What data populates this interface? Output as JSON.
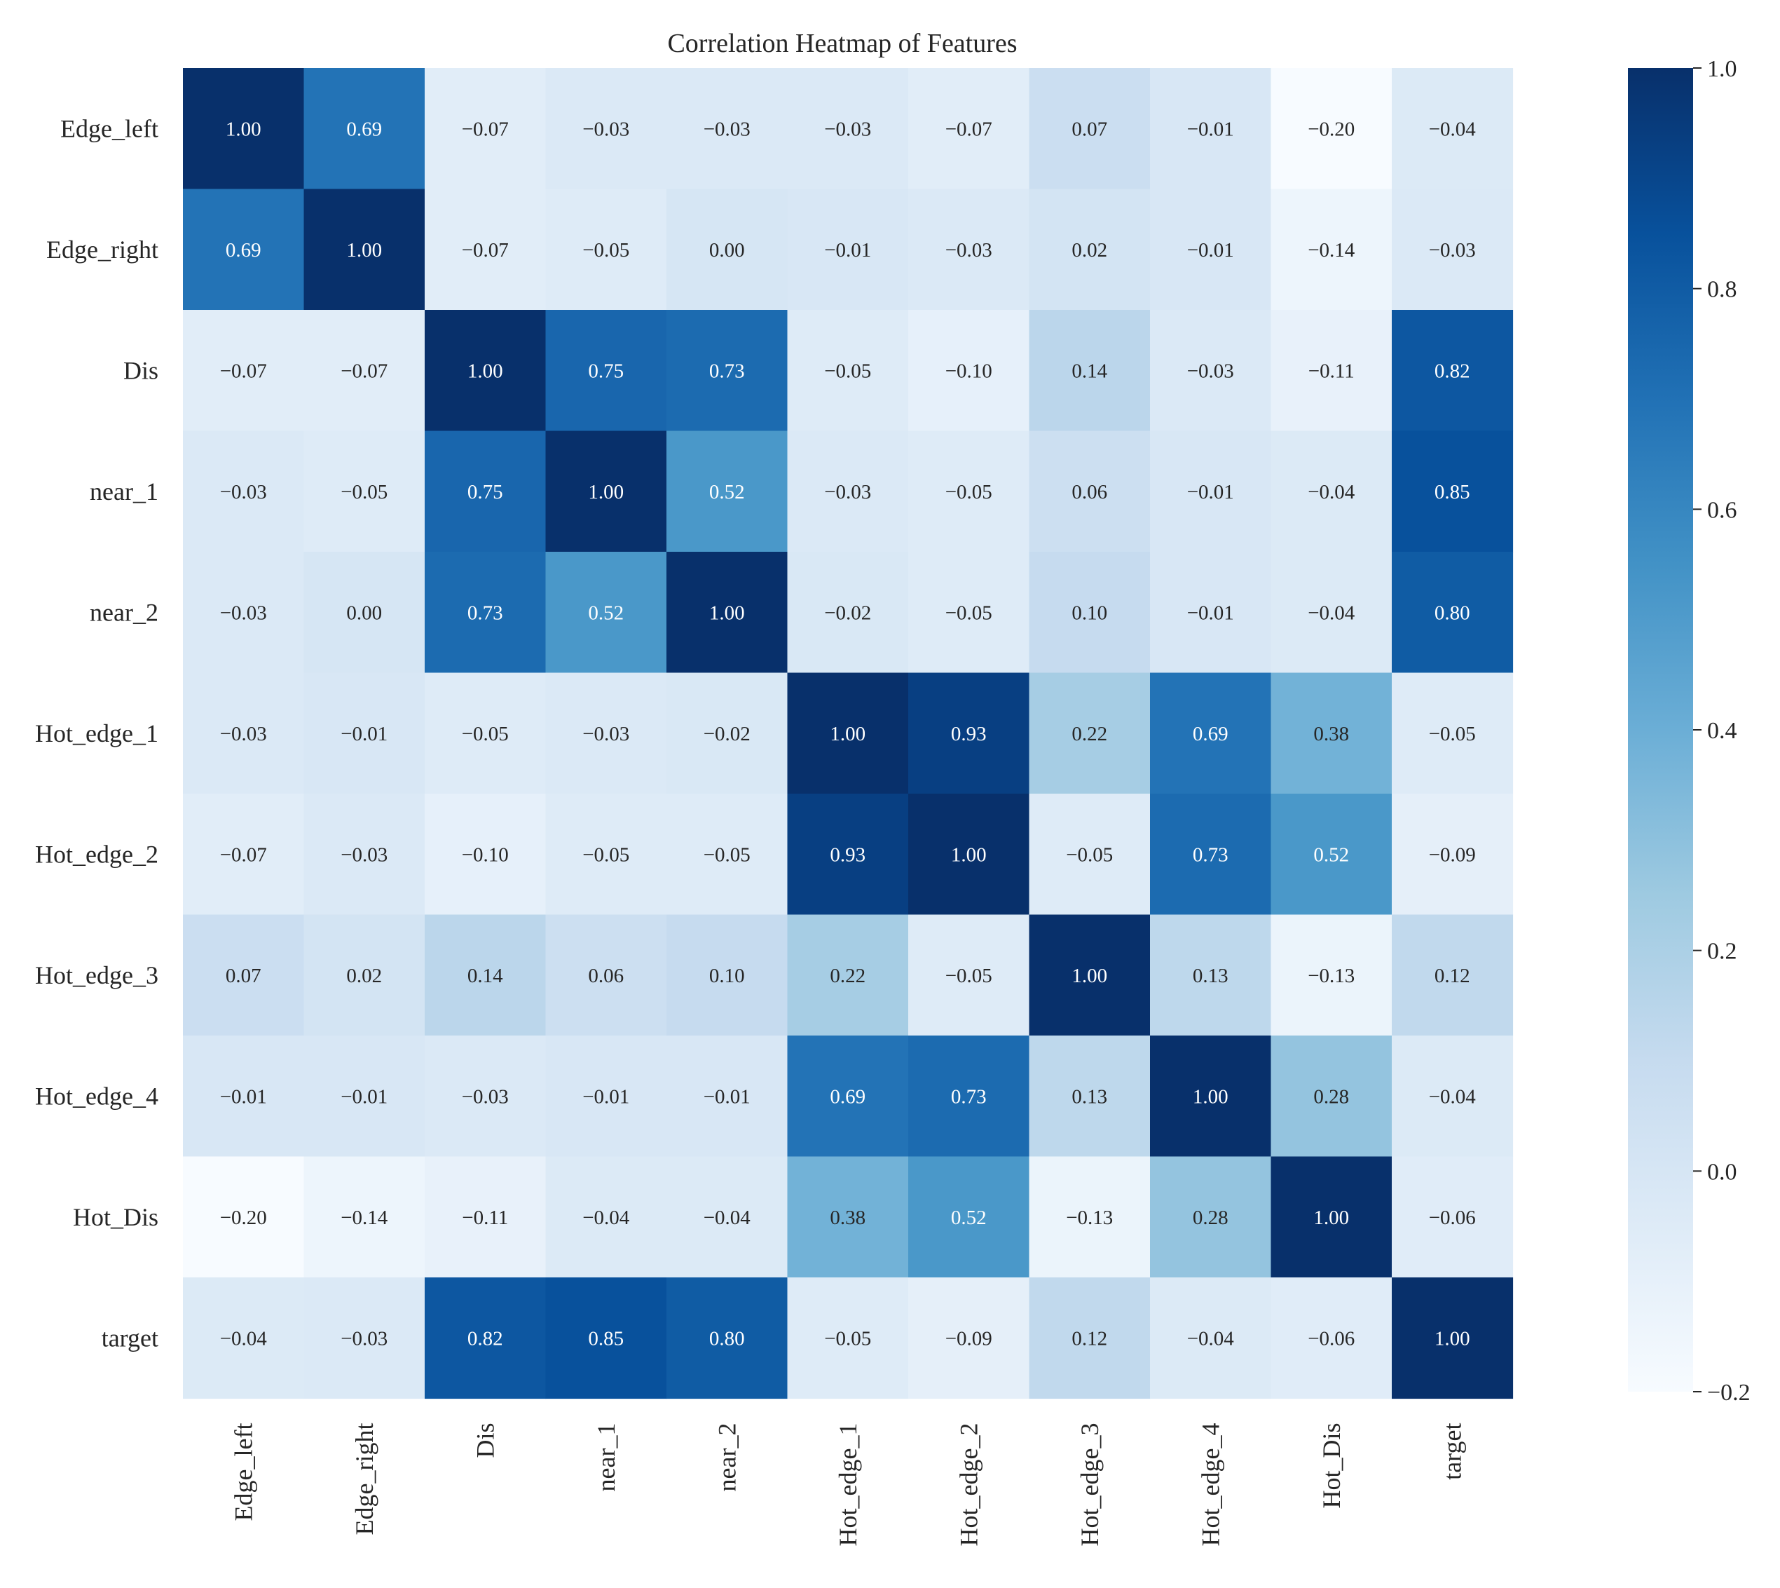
{
  "chart_data": {
    "type": "heatmap",
    "title": "Correlation Heatmap of Features",
    "xlabel": "",
    "ylabel": "",
    "labels": [
      "Edge_left",
      "Edge_right",
      "Dis",
      "near_1",
      "near_2",
      "Hot_edge_1",
      "Hot_edge_2",
      "Hot_edge_3",
      "Hot_edge_4",
      "Hot_Dis",
      "target"
    ],
    "matrix": [
      [
        1.0,
        0.69,
        -0.07,
        -0.03,
        -0.03,
        -0.03,
        -0.07,
        0.07,
        -0.01,
        -0.2,
        -0.04
      ],
      [
        0.69,
        1.0,
        -0.07,
        -0.05,
        0.0,
        -0.01,
        -0.03,
        0.02,
        -0.01,
        -0.14,
        -0.03
      ],
      [
        -0.07,
        -0.07,
        1.0,
        0.75,
        0.73,
        -0.05,
        -0.1,
        0.14,
        -0.03,
        -0.11,
        0.82
      ],
      [
        -0.03,
        -0.05,
        0.75,
        1.0,
        0.52,
        -0.03,
        -0.05,
        0.06,
        -0.01,
        -0.04,
        0.85
      ],
      [
        -0.03,
        0.0,
        0.73,
        0.52,
        1.0,
        -0.02,
        -0.05,
        0.1,
        -0.01,
        -0.04,
        0.8
      ],
      [
        -0.03,
        -0.01,
        -0.05,
        -0.03,
        -0.02,
        1.0,
        0.93,
        0.22,
        0.69,
        0.38,
        -0.05
      ],
      [
        -0.07,
        -0.03,
        -0.1,
        -0.05,
        -0.05,
        0.93,
        1.0,
        -0.05,
        0.73,
        0.52,
        -0.09
      ],
      [
        0.07,
        0.02,
        0.14,
        0.06,
        0.1,
        0.22,
        -0.05,
        1.0,
        0.13,
        -0.13,
        0.12
      ],
      [
        -0.01,
        -0.01,
        -0.03,
        -0.01,
        -0.01,
        0.69,
        0.73,
        0.13,
        1.0,
        0.28,
        -0.04
      ],
      [
        -0.2,
        -0.14,
        -0.11,
        -0.04,
        -0.04,
        0.38,
        0.52,
        -0.13,
        0.28,
        1.0,
        -0.06
      ],
      [
        -0.04,
        -0.03,
        0.82,
        0.85,
        0.8,
        -0.05,
        -0.09,
        0.12,
        -0.04,
        -0.06,
        1.0
      ]
    ],
    "value_format": "2 decimals",
    "colormap": "Blues",
    "colorbar": {
      "range": [
        -0.2,
        1.0
      ],
      "ticks": [
        1.0,
        0.8,
        0.6,
        0.4,
        0.2,
        0.0,
        -0.2
      ],
      "tick_labels": [
        "1.0",
        "0.8",
        "0.6",
        "0.4",
        "0.2",
        "0.0",
        "−0.2"
      ]
    },
    "grid": false
  },
  "colors": {
    "blues": [
      "#f7fbff",
      "#deebf7",
      "#c6dbef",
      "#9ecae1",
      "#6baed6",
      "#4292c6",
      "#2171b5",
      "#08519c",
      "#08306b"
    ],
    "text_dark": "#262626",
    "text_light": "#ffffff"
  }
}
